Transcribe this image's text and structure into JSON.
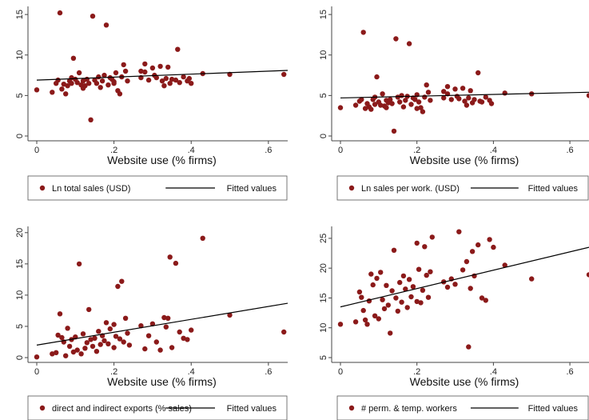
{
  "chart_data": [
    {
      "type": "scatter",
      "xlabel": "Website use (% firms)",
      "xlim": [
        0,
        0.65
      ],
      "ylim": [
        0,
        16
      ],
      "xticks": [
        "0",
        ".2",
        ".4",
        ".6"
      ],
      "yticks": [
        "0",
        "5",
        "10",
        "15"
      ],
      "grid": false,
      "legend_position": "bottom",
      "legend": [
        "Ln total sales (USD)",
        "Fitted values"
      ],
      "fitted_line": {
        "x": [
          0,
          0.65
        ],
        "y": [
          6.9,
          8.1
        ]
      },
      "points": [
        [
          0.0,
          5.7
        ],
        [
          0.04,
          5.4
        ],
        [
          0.05,
          6.5
        ],
        [
          0.055,
          6.9
        ],
        [
          0.06,
          15.2
        ],
        [
          0.065,
          5.8
        ],
        [
          0.07,
          6.4
        ],
        [
          0.075,
          5.2
        ],
        [
          0.08,
          6.2
        ],
        [
          0.085,
          6.8
        ],
        [
          0.09,
          7.2
        ],
        [
          0.09,
          6.5
        ],
        [
          0.095,
          9.6
        ],
        [
          0.1,
          7.0
        ],
        [
          0.105,
          6.6
        ],
        [
          0.11,
          7.8
        ],
        [
          0.115,
          6.3
        ],
        [
          0.12,
          6.8
        ],
        [
          0.12,
          5.9
        ],
        [
          0.125,
          6.2
        ],
        [
          0.13,
          7.0
        ],
        [
          0.135,
          6.5
        ],
        [
          0.14,
          2.0
        ],
        [
          0.145,
          14.8
        ],
        [
          0.15,
          6.9
        ],
        [
          0.155,
          6.5
        ],
        [
          0.16,
          7.3
        ],
        [
          0.165,
          6.0
        ],
        [
          0.17,
          6.8
        ],
        [
          0.175,
          7.5
        ],
        [
          0.18,
          13.7
        ],
        [
          0.185,
          6.3
        ],
        [
          0.19,
          7.2
        ],
        [
          0.195,
          7.0
        ],
        [
          0.2,
          6.7
        ],
        [
          0.2,
          6.5
        ],
        [
          0.205,
          7.8
        ],
        [
          0.21,
          5.6
        ],
        [
          0.215,
          5.2
        ],
        [
          0.22,
          7.3
        ],
        [
          0.225,
          8.8
        ],
        [
          0.23,
          8.0
        ],
        [
          0.235,
          6.8
        ],
        [
          0.27,
          7.2
        ],
        [
          0.27,
          8.0
        ],
        [
          0.28,
          7.9
        ],
        [
          0.28,
          8.9
        ],
        [
          0.29,
          6.9
        ],
        [
          0.3,
          8.4
        ],
        [
          0.305,
          7.5
        ],
        [
          0.31,
          7.2
        ],
        [
          0.32,
          8.6
        ],
        [
          0.325,
          6.8
        ],
        [
          0.33,
          6.2
        ],
        [
          0.335,
          7.1
        ],
        [
          0.34,
          8.5
        ],
        [
          0.345,
          6.5
        ],
        [
          0.35,
          7.0
        ],
        [
          0.36,
          6.9
        ],
        [
          0.365,
          10.7
        ],
        [
          0.37,
          6.6
        ],
        [
          0.38,
          7.3
        ],
        [
          0.39,
          6.8
        ],
        [
          0.395,
          7.1
        ],
        [
          0.4,
          6.5
        ],
        [
          0.43,
          7.7
        ],
        [
          0.5,
          7.6
        ],
        [
          0.64,
          7.6
        ]
      ]
    },
    {
      "type": "scatter",
      "xlabel": "Website use (% firms)",
      "xlim": [
        0,
        0.65
      ],
      "ylim": [
        0,
        16
      ],
      "xticks": [
        "0",
        ".2",
        ".4",
        ".6"
      ],
      "yticks": [
        "0",
        "5",
        "10",
        "15"
      ],
      "grid": false,
      "legend_position": "bottom",
      "legend": [
        "Ln sales per work. (USD)",
        "Fitted values"
      ],
      "fitted_line": {
        "x": [
          0,
          0.65
        ],
        "y": [
          4.7,
          5.4
        ]
      },
      "points": [
        [
          0.0,
          3.5
        ],
        [
          0.04,
          3.8
        ],
        [
          0.05,
          4.3
        ],
        [
          0.055,
          4.5
        ],
        [
          0.06,
          12.8
        ],
        [
          0.065,
          3.4
        ],
        [
          0.07,
          4.0
        ],
        [
          0.075,
          3.6
        ],
        [
          0.08,
          3.3
        ],
        [
          0.085,
          4.5
        ],
        [
          0.09,
          4.8
        ],
        [
          0.09,
          3.9
        ],
        [
          0.095,
          7.3
        ],
        [
          0.1,
          4.2
        ],
        [
          0.105,
          3.8
        ],
        [
          0.11,
          5.2
        ],
        [
          0.115,
          3.7
        ],
        [
          0.12,
          4.4
        ],
        [
          0.12,
          3.5
        ],
        [
          0.125,
          4.1
        ],
        [
          0.13,
          4.5
        ],
        [
          0.135,
          4.0
        ],
        [
          0.14,
          0.6
        ],
        [
          0.145,
          12.0
        ],
        [
          0.15,
          4.8
        ],
        [
          0.155,
          4.2
        ],
        [
          0.16,
          5.0
        ],
        [
          0.165,
          3.6
        ],
        [
          0.17,
          4.4
        ],
        [
          0.175,
          4.9
        ],
        [
          0.18,
          11.4
        ],
        [
          0.185,
          3.9
        ],
        [
          0.19,
          4.7
        ],
        [
          0.195,
          4.5
        ],
        [
          0.2,
          3.4
        ],
        [
          0.2,
          5.1
        ],
        [
          0.205,
          4.2
        ],
        [
          0.21,
          3.5
        ],
        [
          0.215,
          3.0
        ],
        [
          0.22,
          4.8
        ],
        [
          0.225,
          6.3
        ],
        [
          0.23,
          5.4
        ],
        [
          0.235,
          4.4
        ],
        [
          0.27,
          4.7
        ],
        [
          0.27,
          5.5
        ],
        [
          0.28,
          5.2
        ],
        [
          0.28,
          6.1
        ],
        [
          0.29,
          4.5
        ],
        [
          0.3,
          5.8
        ],
        [
          0.305,
          4.9
        ],
        [
          0.31,
          4.6
        ],
        [
          0.32,
          5.9
        ],
        [
          0.325,
          4.3
        ],
        [
          0.33,
          3.8
        ],
        [
          0.335,
          4.7
        ],
        [
          0.34,
          5.6
        ],
        [
          0.345,
          4.1
        ],
        [
          0.35,
          4.5
        ],
        [
          0.36,
          7.8
        ],
        [
          0.365,
          4.3
        ],
        [
          0.37,
          4.2
        ],
        [
          0.38,
          4.8
        ],
        [
          0.39,
          4.4
        ],
        [
          0.395,
          4.0
        ],
        [
          0.43,
          5.3
        ],
        [
          0.5,
          5.2
        ],
        [
          0.65,
          5.0
        ]
      ]
    },
    {
      "type": "scatter",
      "xlabel": "Website use (% firms)",
      "xlim": [
        0,
        0.65
      ],
      "ylim": [
        0,
        21
      ],
      "xticks": [
        "0",
        ".2",
        ".4",
        ".6"
      ],
      "yticks": [
        "0",
        "5",
        "10",
        "15",
        "20"
      ],
      "grid": false,
      "legend_position": "bottom",
      "legend": [
        "direct and indirect exports (% sales)",
        "Fitted values"
      ],
      "fitted_line": {
        "x": [
          0,
          0.65
        ],
        "y": [
          2.0,
          8.7
        ]
      },
      "points": [
        [
          0.0,
          0.1
        ],
        [
          0.04,
          0.6
        ],
        [
          0.05,
          0.8
        ],
        [
          0.055,
          3.6
        ],
        [
          0.06,
          7.0
        ],
        [
          0.065,
          3.2
        ],
        [
          0.07,
          2.5
        ],
        [
          0.075,
          0.3
        ],
        [
          0.08,
          4.7
        ],
        [
          0.085,
          1.8
        ],
        [
          0.09,
          2.9
        ],
        [
          0.095,
          0.9
        ],
        [
          0.1,
          3.3
        ],
        [
          0.105,
          1.2
        ],
        [
          0.11,
          15.0
        ],
        [
          0.115,
          0.6
        ],
        [
          0.12,
          3.8
        ],
        [
          0.125,
          1.5
        ],
        [
          0.13,
          2.4
        ],
        [
          0.135,
          7.7
        ],
        [
          0.14,
          2.9
        ],
        [
          0.145,
          1.8
        ],
        [
          0.15,
          3.1
        ],
        [
          0.155,
          1.0
        ],
        [
          0.16,
          4.2
        ],
        [
          0.165,
          2.1
        ],
        [
          0.17,
          3.5
        ],
        [
          0.175,
          2.7
        ],
        [
          0.18,
          5.6
        ],
        [
          0.185,
          2.2
        ],
        [
          0.19,
          4.6
        ],
        [
          0.2,
          5.3
        ],
        [
          0.2,
          1.6
        ],
        [
          0.205,
          3.4
        ],
        [
          0.21,
          11.4
        ],
        [
          0.215,
          3.0
        ],
        [
          0.22,
          12.2
        ],
        [
          0.225,
          2.5
        ],
        [
          0.23,
          6.3
        ],
        [
          0.235,
          3.9
        ],
        [
          0.24,
          2.0
        ],
        [
          0.27,
          5.1
        ],
        [
          0.28,
          1.4
        ],
        [
          0.29,
          3.5
        ],
        [
          0.3,
          5.4
        ],
        [
          0.31,
          2.5
        ],
        [
          0.32,
          1.2
        ],
        [
          0.33,
          6.4
        ],
        [
          0.335,
          4.9
        ],
        [
          0.34,
          6.3
        ],
        [
          0.345,
          16.1
        ],
        [
          0.35,
          1.6
        ],
        [
          0.36,
          15.1
        ],
        [
          0.37,
          4.1
        ],
        [
          0.38,
          3.1
        ],
        [
          0.39,
          2.9
        ],
        [
          0.4,
          4.4
        ],
        [
          0.43,
          19.1
        ],
        [
          0.5,
          6.8
        ],
        [
          0.64,
          4.1
        ]
      ]
    },
    {
      "type": "scatter",
      "xlabel": "Website use (% firms)",
      "xlim": [
        0,
        0.65
      ],
      "ylim": [
        5,
        27
      ],
      "xticks": [
        "0",
        ".2",
        ".4",
        ".6"
      ],
      "yticks": [
        "5",
        "10",
        "15",
        "20",
        "25"
      ],
      "grid": false,
      "legend_position": "bottom",
      "legend": [
        "# perm. & temp. workers",
        "Fitted values"
      ],
      "fitted_line": {
        "x": [
          0,
          0.65
        ],
        "y": [
          13.5,
          23.5
        ]
      },
      "points": [
        [
          0.0,
          10.6
        ],
        [
          0.04,
          11.0
        ],
        [
          0.05,
          16.0
        ],
        [
          0.055,
          15.1
        ],
        [
          0.06,
          12.9
        ],
        [
          0.065,
          11.3
        ],
        [
          0.07,
          10.6
        ],
        [
          0.075,
          14.5
        ],
        [
          0.08,
          19.0
        ],
        [
          0.085,
          17.2
        ],
        [
          0.09,
          12.0
        ],
        [
          0.095,
          18.3
        ],
        [
          0.1,
          11.5
        ],
        [
          0.105,
          19.3
        ],
        [
          0.11,
          14.7
        ],
        [
          0.115,
          13.2
        ],
        [
          0.12,
          17.1
        ],
        [
          0.125,
          13.8
        ],
        [
          0.13,
          9.1
        ],
        [
          0.135,
          16.2
        ],
        [
          0.14,
          23.0
        ],
        [
          0.145,
          15.0
        ],
        [
          0.15,
          12.8
        ],
        [
          0.155,
          17.6
        ],
        [
          0.16,
          14.3
        ],
        [
          0.165,
          18.7
        ],
        [
          0.17,
          16.5
        ],
        [
          0.175,
          13.4
        ],
        [
          0.18,
          18.1
        ],
        [
          0.185,
          15.2
        ],
        [
          0.19,
          16.9
        ],
        [
          0.2,
          24.2
        ],
        [
          0.2,
          14.4
        ],
        [
          0.205,
          19.8
        ],
        [
          0.21,
          14.2
        ],
        [
          0.215,
          16.3
        ],
        [
          0.22,
          23.6
        ],
        [
          0.225,
          18.8
        ],
        [
          0.23,
          15.1
        ],
        [
          0.235,
          19.4
        ],
        [
          0.24,
          25.2
        ],
        [
          0.27,
          17.7
        ],
        [
          0.28,
          16.8
        ],
        [
          0.29,
          18.2
        ],
        [
          0.3,
          17.3
        ],
        [
          0.31,
          26.1
        ],
        [
          0.32,
          19.7
        ],
        [
          0.33,
          21.1
        ],
        [
          0.335,
          6.8
        ],
        [
          0.34,
          16.6
        ],
        [
          0.345,
          22.8
        ],
        [
          0.35,
          18.7
        ],
        [
          0.36,
          23.9
        ],
        [
          0.37,
          15.0
        ],
        [
          0.38,
          14.6
        ],
        [
          0.39,
          24.8
        ],
        [
          0.4,
          23.5
        ],
        [
          0.43,
          20.5
        ],
        [
          0.5,
          18.2
        ],
        [
          0.65,
          18.9
        ]
      ]
    }
  ],
  "style": {
    "marker_color": "#8b1a1a",
    "line_color": "#000000",
    "background": "#ffffff",
    "frame_color": "#444444"
  }
}
